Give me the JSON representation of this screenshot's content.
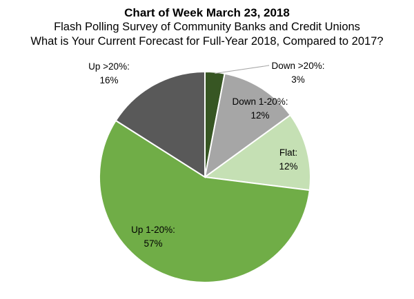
{
  "chart_data": {
    "type": "pie",
    "title": "Chart of Week March 23, 2018",
    "subtitle": [
      "Flash Polling Survey of Community Banks and Credit Unions",
      "What is Your Current Forecast for Full-Year 2018, Compared to 2017?"
    ],
    "start_angle_deg": 0,
    "direction": "clockwise",
    "slices": [
      {
        "label": "Down >20%:",
        "value": 3,
        "value_label": "3%",
        "color": "#375623"
      },
      {
        "label": "Down 1-20%:",
        "value": 12,
        "value_label": "12%",
        "color": "#a6a6a6"
      },
      {
        "label": "Flat:",
        "value": 12,
        "value_label": "12%",
        "color": "#c5e0b4"
      },
      {
        "label": "Up 1-20%:",
        "value": 57,
        "value_label": "57%",
        "color": "#70ad47"
      },
      {
        "label": "Up >20%:",
        "value": 16,
        "value_label": "16%",
        "color": "#595959"
      }
    ]
  }
}
